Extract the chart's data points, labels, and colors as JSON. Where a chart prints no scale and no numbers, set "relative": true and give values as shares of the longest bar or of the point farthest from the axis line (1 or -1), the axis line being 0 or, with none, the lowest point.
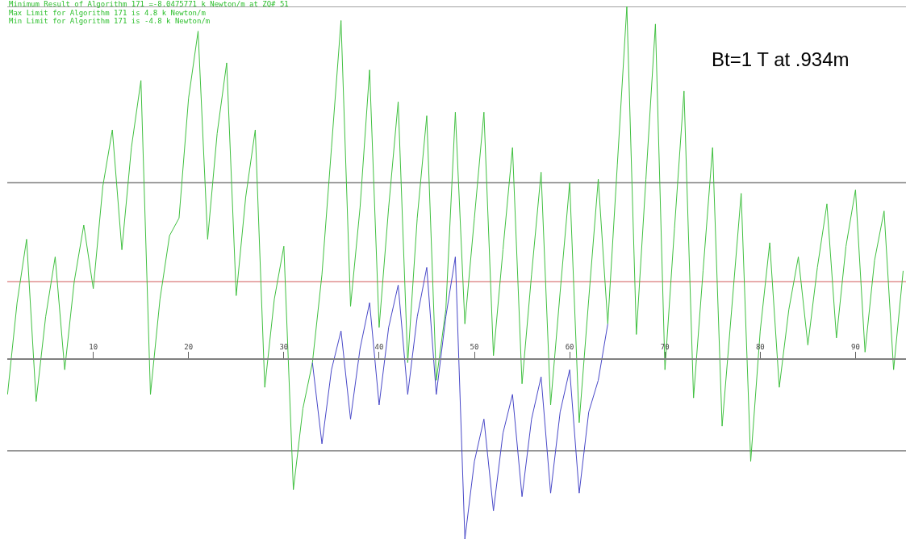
{
  "chart_data": {
    "type": "line",
    "relative": true,
    "grid": false,
    "marker": "none",
    "line_style": "solid",
    "xlim": [
      0.97,
      95.3
    ],
    "xticks": [
      10,
      20,
      30,
      40,
      50,
      60,
      70,
      80,
      90
    ],
    "series": [
      {
        "color": "#40c040",
        "x": [
          1,
          2,
          3,
          4,
          5,
          6,
          7,
          8,
          9,
          10,
          11,
          12,
          13,
          14,
          15,
          16,
          17,
          18,
          19,
          20,
          21,
          22,
          23,
          24,
          25,
          26,
          27,
          28,
          29,
          30,
          31,
          32,
          33,
          34,
          35,
          36,
          37,
          38,
          39,
          40,
          41,
          42,
          43,
          44,
          45,
          46,
          47,
          48,
          49,
          50,
          51,
          52,
          53,
          54,
          55,
          56,
          57,
          58,
          59,
          60,
          61,
          62,
          63,
          64,
          65,
          66,
          67,
          68,
          69,
          70,
          71,
          72,
          73,
          74,
          75,
          76,
          77,
          78,
          79,
          80,
          81,
          82,
          83,
          84,
          85,
          86,
          87,
          88,
          89,
          90,
          91,
          92,
          93,
          94,
          95
        ],
        "values": [
          -0.1,
          0.16,
          0.34,
          -0.12,
          0.12,
          0.29,
          -0.03,
          0.22,
          0.38,
          0.2,
          0.49,
          0.65,
          0.31,
          0.6,
          0.79,
          -0.1,
          0.17,
          0.35,
          0.4,
          0.74,
          0.93,
          0.34,
          0.64,
          0.84,
          0.18,
          0.46,
          0.65,
          -0.08,
          0.17,
          0.32,
          -0.37,
          -0.14,
          -0.01,
          0.24,
          0.6,
          0.96,
          0.15,
          0.43,
          0.82,
          0.09,
          0.43,
          0.73,
          -0.01,
          0.4,
          0.69,
          -0.06,
          0.14,
          0.7,
          0.1,
          0.4,
          0.7,
          0.01,
          0.31,
          0.6,
          -0.07,
          0.24,
          0.53,
          -0.13,
          0.19,
          0.5,
          -0.18,
          0.17,
          0.51,
          0.1,
          0.55,
          1.0,
          0.07,
          0.51,
          0.95,
          -0.03,
          0.37,
          0.76,
          -0.11,
          0.25,
          0.6,
          -0.19,
          0.14,
          0.47,
          -0.29,
          0.08,
          0.33,
          -0.08,
          0.14,
          0.29,
          0.04,
          0.26,
          0.44,
          0.06,
          0.32,
          0.48,
          0.02,
          0.28,
          0.42,
          -0.03,
          0.25
        ]
      },
      {
        "color": "#4848c8",
        "x": [
          33,
          34,
          35,
          36,
          37,
          38,
          39,
          40,
          41,
          42,
          43,
          44,
          45,
          46,
          47,
          48,
          49,
          50,
          51,
          52,
          53,
          54,
          55,
          56,
          57,
          58,
          59,
          60,
          61,
          62,
          63,
          64
        ],
        "values": [
          -0.01,
          -0.24,
          -0.03,
          0.08,
          -0.17,
          0.03,
          0.16,
          -0.13,
          0.09,
          0.21,
          -0.1,
          0.12,
          0.26,
          -0.1,
          0.12,
          0.29,
          -0.51,
          -0.29,
          -0.17,
          -0.43,
          -0.21,
          -0.1,
          -0.39,
          -0.17,
          -0.05,
          -0.38,
          -0.15,
          -0.03,
          -0.38,
          -0.15,
          -0.06,
          0.1
        ]
      }
    ],
    "ref_lines": [
      {
        "axis": "y",
        "value": 1.0,
        "color": "#808080"
      },
      {
        "axis": "y",
        "value": 0.5,
        "color": "#808080"
      },
      {
        "axis": "y",
        "value": 0.22,
        "color": "#e09090"
      },
      {
        "axis": "y",
        "value": -0.26,
        "color": "#808080"
      }
    ],
    "annotations": [
      "Minimum Result of Algorithm 171 =-8.0475771 k Newton/m at ZQ# 51",
      "Max Limit for Algorithm 171 is 4.8 k Newton/m",
      "Min Limit for Algorithm 171 is -4.8 k Newton/m",
      "Bt=1 T at .934m"
    ]
  }
}
